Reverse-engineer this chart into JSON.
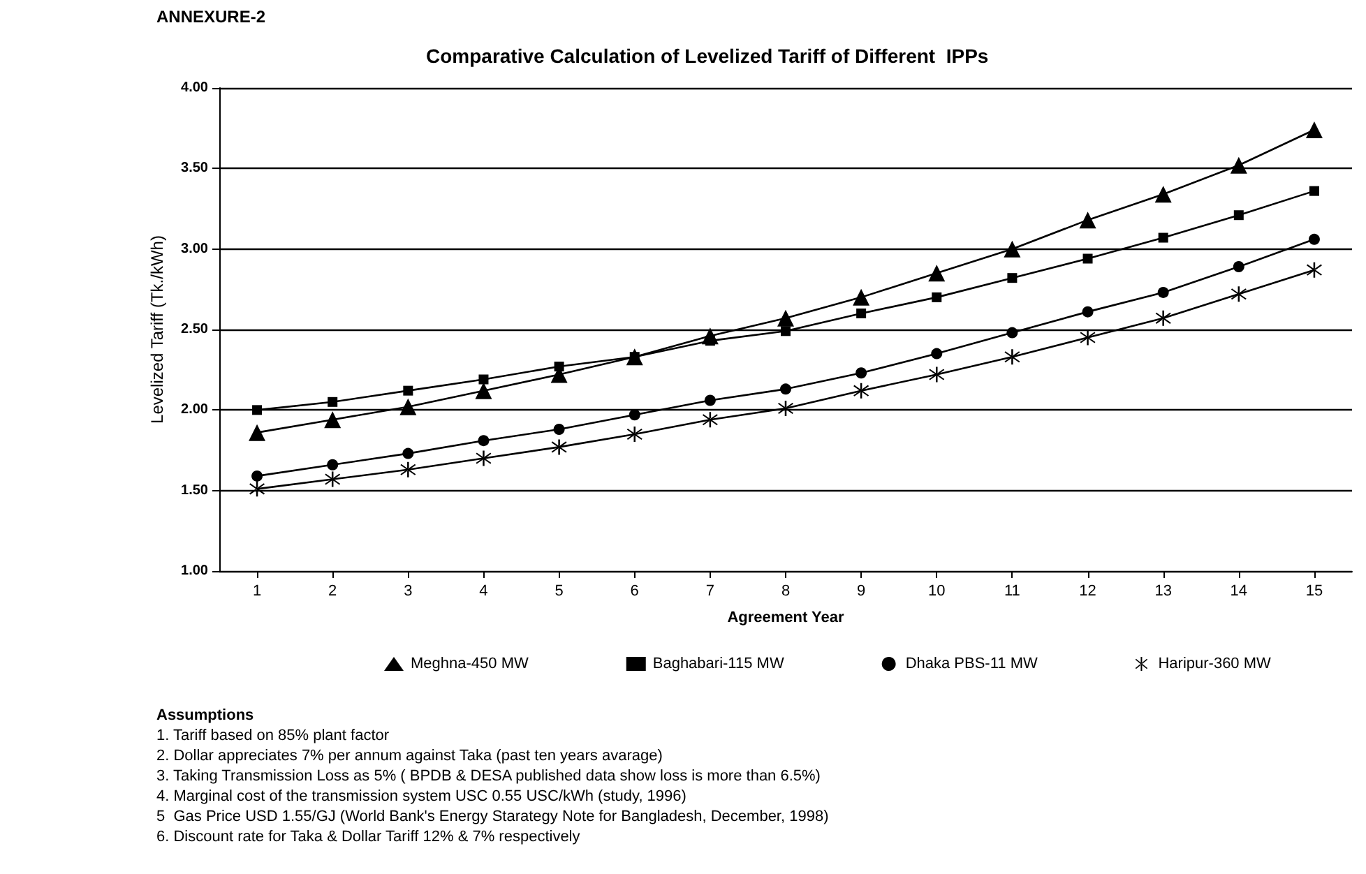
{
  "chart_data": {
    "type": "line",
    "title": "Comparative Calculation of Levelized Tariff of Different  IPPs",
    "subtitle": "ANNEXURE-2",
    "xlabel": "Agreement Year",
    "ylabel": "Levelized Tariff (Tk./kWh)",
    "x": [
      1,
      2,
      3,
      4,
      5,
      6,
      7,
      8,
      9,
      10,
      11,
      12,
      13,
      14,
      15
    ],
    "xlim": [
      0.5,
      15.5
    ],
    "xticks": [
      1,
      2,
      3,
      4,
      5,
      6,
      7,
      8,
      9,
      10,
      11,
      12,
      13,
      14,
      15
    ],
    "series": [
      {
        "name": "Meghna-450 MW",
        "color": "#000000",
        "marker": "triangle",
        "values": [
          1.86,
          1.94,
          2.02,
          2.12,
          2.22,
          2.33,
          2.46,
          2.57,
          2.7,
          2.85,
          3.0,
          3.18,
          3.34,
          3.52,
          3.74
        ]
      },
      {
        "name": "Baghabari-115 MW",
        "color": "#000000",
        "marker": "square",
        "values": [
          2.0,
          2.05,
          2.12,
          2.19,
          2.27,
          2.33,
          2.43,
          2.49,
          2.6,
          2.7,
          2.82,
          2.94,
          3.07,
          3.21,
          3.36
        ]
      },
      {
        "name": "Dhaka PBS-11 MW",
        "color": "#000000",
        "marker": "circle",
        "values": [
          1.59,
          1.66,
          1.73,
          1.81,
          1.88,
          1.97,
          2.06,
          2.13,
          2.23,
          2.35,
          2.48,
          2.61,
          2.73,
          2.89,
          3.06
        ]
      },
      {
        "name": "Haripur-360 MW",
        "color": "#000000",
        "marker": "cross",
        "values": [
          1.51,
          1.57,
          1.63,
          1.7,
          1.77,
          1.85,
          1.94,
          2.01,
          2.12,
          2.22,
          2.33,
          2.45,
          2.57,
          2.72,
          2.87
        ]
      }
    ],
    "ylim": [
      1,
      4
    ],
    "yticks": [
      {
        "value": 1,
        "label": "1.00"
      },
      {
        "value": 1.5,
        "label": "1.50"
      },
      {
        "value": 2,
        "label": "2.00"
      },
      {
        "value": 2.5,
        "label": "2.50"
      },
      {
        "value": 3,
        "label": "3.00"
      },
      {
        "value": 3.5,
        "label": "3.50"
      },
      {
        "value": 4,
        "label": "4.00"
      }
    ],
    "grid": "y",
    "legend": "bottom",
    "line_style": "solid",
    "annotations": [
      "Assumptions",
      "1. Tariff based on 85% plant factor",
      "2. Dollar appreciates 7% per annum against Taka (past ten years avarage)",
      "3. Taking Transmission Loss as 5% ( BPDB & DESA published data show loss is more than 6.5%)",
      "4. Marginal cost of the transmission system USC 0.55 USC/kWh (study, 1996)",
      "5  Gas Price USD 1.55/GJ (World Bank's Energy Starategy Note for Bangladesh, December, 1998)",
      "6. Discount rate for Taka & Dollar Tariff 12% & 7% respectively"
    ]
  }
}
